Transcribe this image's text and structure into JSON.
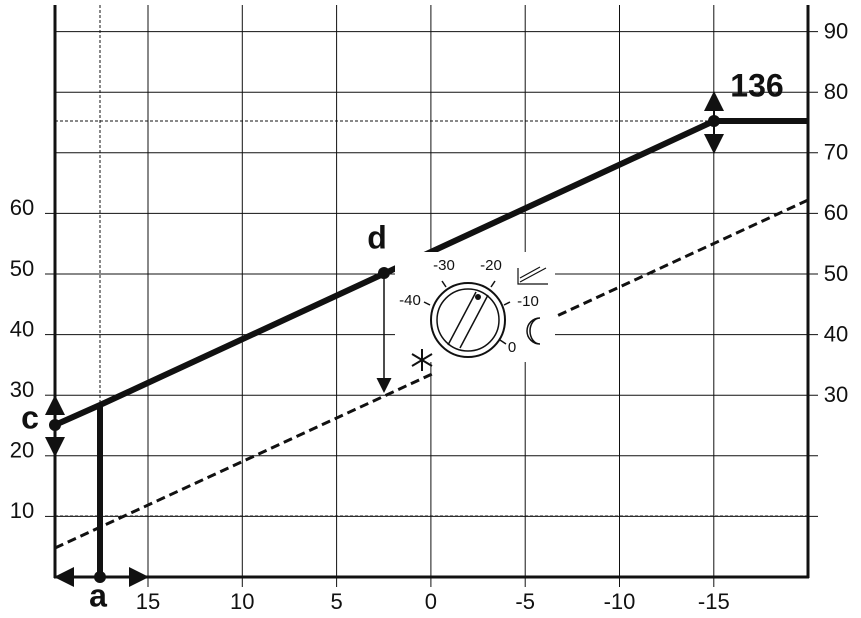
{
  "left_axis": {
    "labels": [
      "10",
      "20",
      "30",
      "40",
      "50",
      "60"
    ]
  },
  "right_axis": {
    "labels": [
      "30",
      "40",
      "50",
      "60",
      "70",
      "80",
      "90"
    ]
  },
  "bottom_axis": {
    "labels": [
      "15",
      "10",
      "5",
      "0",
      "-5",
      "-10",
      "-15"
    ]
  },
  "callouts": {
    "max_flow": "136",
    "point_d": "d",
    "point_c": "c",
    "point_a": "a"
  },
  "knob": {
    "labels": [
      "-40",
      "-30",
      "-20",
      "-10",
      "0"
    ]
  }
}
